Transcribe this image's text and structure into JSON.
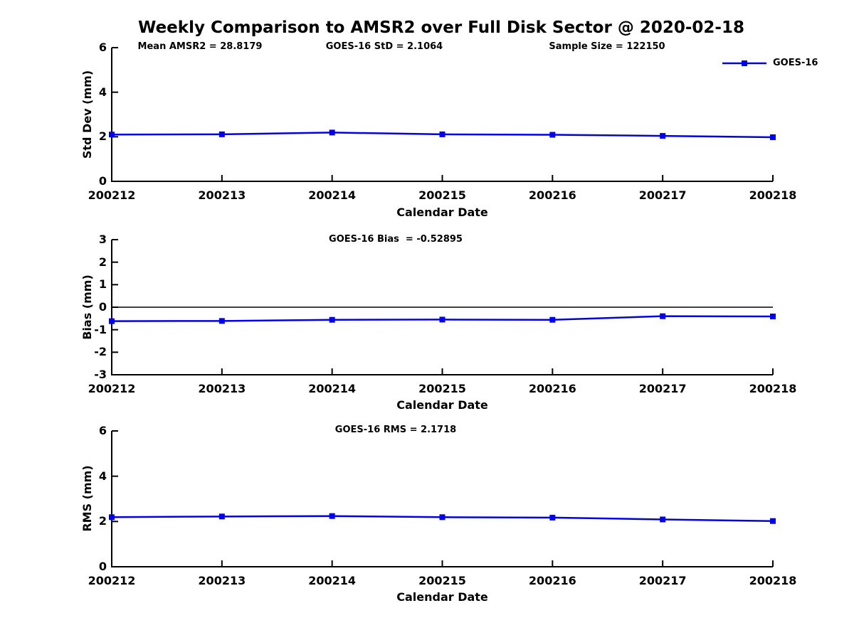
{
  "figure_title": "Weekly Comparison to AMSR2 over Full Disk Sector @ 2020-02-18",
  "legend": {
    "label": "GOES-16",
    "position": "top-right"
  },
  "colors": {
    "line": "#0000ee",
    "axis": "#000000",
    "background": "#ffffff"
  },
  "chart_data": [
    {
      "type": "line",
      "panel": "std_dev",
      "annotations": [
        "Mean AMSR2 = 28.8179",
        "GOES-16 StD = 2.1064",
        "Sample Size = 122150"
      ],
      "ylabel": "Std Dev (mm)",
      "xlabel": "Calendar Date",
      "ylim": [
        0,
        6
      ],
      "yticks": [
        6,
        4,
        2,
        0
      ],
      "categories": [
        "200212",
        "200213",
        "200214",
        "200215",
        "200216",
        "200217",
        "200218"
      ],
      "series": [
        {
          "name": "GOES-16",
          "marker": "square",
          "values": [
            2.1,
            2.11,
            2.19,
            2.11,
            2.09,
            2.04,
            1.98
          ]
        }
      ],
      "grid": false,
      "zero_line": false,
      "legend_position": "top-right"
    },
    {
      "type": "line",
      "panel": "bias",
      "annotations": [
        "GOES-16 Bias  = -0.52895"
      ],
      "ylabel": "Bias (mm)",
      "xlabel": "Calendar Date",
      "ylim": [
        -3,
        3
      ],
      "yticks": [
        3,
        2,
        1,
        0,
        -1,
        -2,
        -3
      ],
      "categories": [
        "200212",
        "200213",
        "200214",
        "200215",
        "200216",
        "200217",
        "200218"
      ],
      "series": [
        {
          "name": "GOES-16",
          "marker": "square",
          "values": [
            -0.62,
            -0.61,
            -0.56,
            -0.55,
            -0.56,
            -0.4,
            -0.41
          ]
        }
      ],
      "grid": false,
      "zero_line": true,
      "legend_position": "none"
    },
    {
      "type": "line",
      "panel": "rms",
      "annotations": [
        "GOES-16 RMS = 2.1718"
      ],
      "ylabel": "RMS (mm)",
      "xlabel": "Calendar Date",
      "ylim": [
        0,
        6
      ],
      "yticks": [
        6,
        4,
        2,
        0
      ],
      "categories": [
        "200212",
        "200213",
        "200214",
        "200215",
        "200216",
        "200217",
        "200218"
      ],
      "series": [
        {
          "name": "GOES-16",
          "marker": "square",
          "values": [
            2.19,
            2.22,
            2.24,
            2.19,
            2.17,
            2.09,
            2.02
          ]
        }
      ],
      "grid": false,
      "zero_line": false,
      "legend_position": "none"
    }
  ]
}
